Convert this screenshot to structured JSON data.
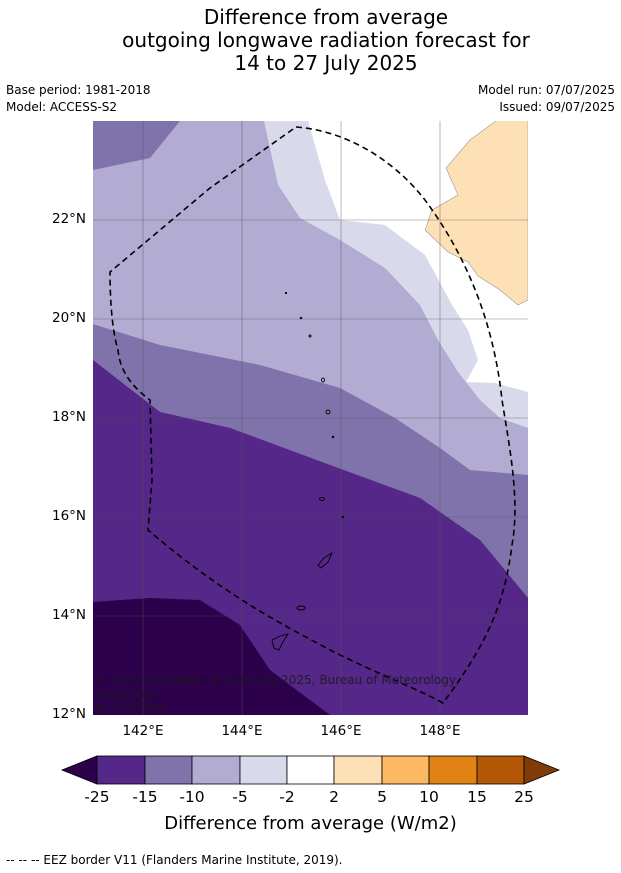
{
  "title_lines": [
    "Difference from average",
    "outgoing longwave radiation forecast for",
    "14 to 27 July 2025"
  ],
  "base_period": "Base period: 1981-2018",
  "model": "Model: ACCESS-S2",
  "model_run": "Model run: 07/07/2025",
  "issued": "Issued: 09/07/2025",
  "map": {
    "lat_labels": [
      "22°N",
      "20°N",
      "18°N",
      "16°N",
      "14°N",
      "12°N"
    ],
    "lon_labels": [
      "142°E",
      "144°E",
      "146°E",
      "148°E"
    ],
    "copyright_line1": "© Commonwealth of Australia 2025, Bureau of Meteorology, supported",
    "copyright_line2": "by COSPPac"
  },
  "colorbar": {
    "ticks": [
      "-25",
      "-15",
      "-10",
      "-5",
      "-2",
      "2",
      "5",
      "10",
      "15",
      "25"
    ],
    "colors": {
      "below_min": "#2d004b",
      "c1": "#542788",
      "c2": "#8073ac",
      "c3": "#b2abd2",
      "c4": "#d8daeb",
      "c5": "#ffffff",
      "c6": "#fee0b6",
      "c7": "#fdb863",
      "c8": "#e08214",
      "c9": "#b35806",
      "above_max": "#7f3b08"
    },
    "label": "Difference from average (W/m2)"
  },
  "footnote": "--  --  -- EEZ border V11 (Flanders Marine Institute, 2019)."
}
